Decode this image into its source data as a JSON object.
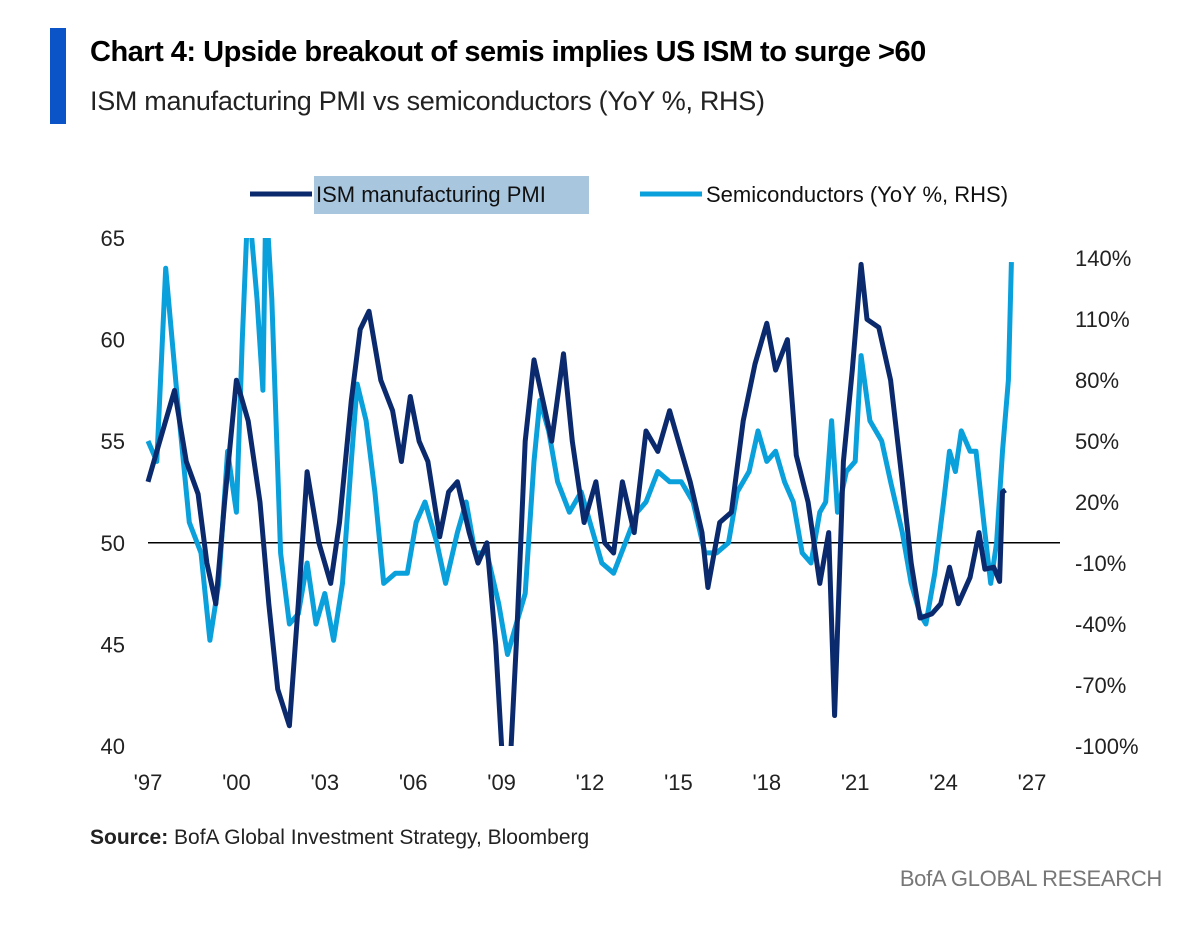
{
  "header": {
    "title": "Chart 4: Upside breakout of semis implies US ISM to surge >60",
    "subtitle": "ISM manufacturing PMI vs semiconductors (YoY %, RHS)"
  },
  "footer": {
    "source_label": "Source:",
    "source_text": "BofA Global Investment Strategy, Bloomberg",
    "brand": "BofA GLOBAL RESEARCH"
  },
  "chart_data": {
    "type": "line",
    "title": "Chart 4: Upside breakout of semis implies US ISM to surge >60",
    "subtitle": "ISM manufacturing PMI vs semiconductors (YoY %, RHS)",
    "legend_placement": "top-center",
    "grid": false,
    "reference_line": {
      "axis": "left",
      "value": 50
    },
    "x_axis": {
      "range": [
        1997,
        2027
      ],
      "ticks": [
        1997,
        2000,
        2003,
        2006,
        2009,
        2012,
        2015,
        2018,
        2021,
        2024,
        2027
      ],
      "tick_labels": [
        "'97",
        "'00",
        "'03",
        "'06",
        "'09",
        "'12",
        "'15",
        "'18",
        "'21",
        "'24",
        "'27"
      ]
    },
    "y_left": {
      "range": [
        40,
        65
      ],
      "ticks": [
        40,
        45,
        50,
        55,
        60,
        65
      ],
      "tick_labels": [
        "40",
        "45",
        "50",
        "55",
        "60",
        "65"
      ]
    },
    "y_right": {
      "range": [
        -100,
        140
      ],
      "ticks": [
        -100,
        -70,
        -40,
        -10,
        20,
        50,
        80,
        110,
        140
      ],
      "tick_labels": [
        "-100%",
        "-70%",
        "-40%",
        "-10%",
        "20%",
        "50%",
        "80%",
        "110%",
        "140%"
      ]
    },
    "series": [
      {
        "name": "ISM manufacturing PMI",
        "axis": "left",
        "color": "#0b2a6e",
        "highlighted": true,
        "points": [
          [
            1997.0,
            53
          ],
          [
            1997.5,
            55.5
          ],
          [
            1997.9,
            57.5
          ],
          [
            1998.3,
            54
          ],
          [
            1998.7,
            52.4
          ],
          [
            1999.0,
            49
          ],
          [
            1999.3,
            47
          ],
          [
            1999.6,
            52
          ],
          [
            2000.0,
            58
          ],
          [
            2000.4,
            56
          ],
          [
            2000.8,
            52
          ],
          [
            2001.1,
            47
          ],
          [
            2001.4,
            42.8
          ],
          [
            2001.8,
            41
          ],
          [
            2002.1,
            47
          ],
          [
            2002.4,
            53.5
          ],
          [
            2002.8,
            50
          ],
          [
            2003.2,
            48
          ],
          [
            2003.5,
            51
          ],
          [
            2003.9,
            57
          ],
          [
            2004.2,
            60.5
          ],
          [
            2004.5,
            61.4
          ],
          [
            2004.9,
            58
          ],
          [
            2005.3,
            56.5
          ],
          [
            2005.6,
            54
          ],
          [
            2005.9,
            57.2
          ],
          [
            2006.2,
            55
          ],
          [
            2006.5,
            54
          ],
          [
            2006.9,
            50.3
          ],
          [
            2007.2,
            52.5
          ],
          [
            2007.5,
            53
          ],
          [
            2007.9,
            50.5
          ],
          [
            2008.2,
            49
          ],
          [
            2008.5,
            50
          ],
          [
            2008.8,
            45
          ],
          [
            2009.0,
            40
          ],
          [
            2009.2,
            36.5
          ],
          [
            2009.5,
            45
          ],
          [
            2009.8,
            55
          ],
          [
            2010.1,
            59
          ],
          [
            2010.4,
            57
          ],
          [
            2010.7,
            55
          ],
          [
            2011.1,
            59.3
          ],
          [
            2011.4,
            55
          ],
          [
            2011.8,
            51
          ],
          [
            2012.2,
            53
          ],
          [
            2012.5,
            50
          ],
          [
            2012.8,
            49.5
          ],
          [
            2013.1,
            53
          ],
          [
            2013.5,
            50.5
          ],
          [
            2013.9,
            55.5
          ],
          [
            2014.3,
            54.5
          ],
          [
            2014.7,
            56.5
          ],
          [
            2015.0,
            55
          ],
          [
            2015.4,
            53
          ],
          [
            2015.8,
            50.5
          ],
          [
            2016.0,
            47.8
          ],
          [
            2016.4,
            51
          ],
          [
            2016.8,
            51.5
          ],
          [
            2017.2,
            56
          ],
          [
            2017.6,
            58.8
          ],
          [
            2018.0,
            60.8
          ],
          [
            2018.3,
            58.5
          ],
          [
            2018.7,
            60
          ],
          [
            2019.0,
            54.3
          ],
          [
            2019.4,
            52
          ],
          [
            2019.8,
            48
          ],
          [
            2020.1,
            50.5
          ],
          [
            2020.3,
            41.5
          ],
          [
            2020.6,
            54
          ],
          [
            2020.9,
            58.5
          ],
          [
            2021.2,
            63.7
          ],
          [
            2021.4,
            61
          ],
          [
            2021.8,
            60.6
          ],
          [
            2022.2,
            58
          ],
          [
            2022.6,
            53
          ],
          [
            2022.9,
            49
          ],
          [
            2023.2,
            46.3
          ],
          [
            2023.6,
            46.5
          ],
          [
            2023.9,
            47
          ],
          [
            2024.2,
            48.8
          ],
          [
            2024.5,
            47
          ],
          [
            2024.9,
            48.3
          ],
          [
            2025.2,
            50.5
          ],
          [
            2025.4,
            48.7
          ],
          [
            2025.7,
            48.8
          ],
          [
            2025.9,
            48.1
          ],
          [
            2026.0,
            52.5
          ],
          [
            2026.1,
            52.6
          ]
        ]
      },
      {
        "name": "Semiconductors (YoY %, RHS)",
        "axis": "right",
        "color": "#0aa0dc",
        "points": [
          [
            1997.0,
            50
          ],
          [
            1997.3,
            40
          ],
          [
            1997.6,
            135
          ],
          [
            1998.0,
            70
          ],
          [
            1998.4,
            10
          ],
          [
            1998.8,
            -5
          ],
          [
            1999.1,
            -48
          ],
          [
            1999.4,
            -20
          ],
          [
            1999.7,
            45
          ],
          [
            2000.0,
            15
          ],
          [
            2000.2,
            100
          ],
          [
            2000.4,
            170
          ],
          [
            2000.7,
            120
          ],
          [
            2000.9,
            75
          ],
          [
            2001.0,
            170
          ],
          [
            2001.2,
            120
          ],
          [
            2001.5,
            -5
          ],
          [
            2001.8,
            -40
          ],
          [
            2002.1,
            -35
          ],
          [
            2002.4,
            -10
          ],
          [
            2002.7,
            -40
          ],
          [
            2003.0,
            -25
          ],
          [
            2003.3,
            -48
          ],
          [
            2003.6,
            -20
          ],
          [
            2003.9,
            40
          ],
          [
            2004.1,
            78
          ],
          [
            2004.4,
            60
          ],
          [
            2004.7,
            25
          ],
          [
            2005.0,
            -20
          ],
          [
            2005.4,
            -15
          ],
          [
            2005.8,
            -15
          ],
          [
            2006.1,
            10
          ],
          [
            2006.4,
            20
          ],
          [
            2006.8,
            0
          ],
          [
            2007.1,
            -20
          ],
          [
            2007.5,
            5
          ],
          [
            2007.8,
            20
          ],
          [
            2008.1,
            -5
          ],
          [
            2008.5,
            -5
          ],
          [
            2008.9,
            -30
          ],
          [
            2009.2,
            -55
          ],
          [
            2009.5,
            -40
          ],
          [
            2009.8,
            -25
          ],
          [
            2010.1,
            40
          ],
          [
            2010.3,
            70
          ],
          [
            2010.6,
            55
          ],
          [
            2010.9,
            30
          ],
          [
            2011.3,
            15
          ],
          [
            2011.7,
            25
          ],
          [
            2012.0,
            10
          ],
          [
            2012.4,
            -10
          ],
          [
            2012.8,
            -15
          ],
          [
            2013.2,
            0
          ],
          [
            2013.6,
            15
          ],
          [
            2013.9,
            20
          ],
          [
            2014.3,
            35
          ],
          [
            2014.7,
            30
          ],
          [
            2015.1,
            30
          ],
          [
            2015.5,
            20
          ],
          [
            2015.9,
            -5
          ],
          [
            2016.3,
            -5
          ],
          [
            2016.7,
            0
          ],
          [
            2017.0,
            25
          ],
          [
            2017.4,
            35
          ],
          [
            2017.7,
            55
          ],
          [
            2018.0,
            40
          ],
          [
            2018.3,
            45
          ],
          [
            2018.6,
            30
          ],
          [
            2018.9,
            20
          ],
          [
            2019.2,
            -5
          ],
          [
            2019.5,
            -10
          ],
          [
            2019.8,
            15
          ],
          [
            2020.0,
            20
          ],
          [
            2020.2,
            60
          ],
          [
            2020.4,
            15
          ],
          [
            2020.7,
            35
          ],
          [
            2021.0,
            40
          ],
          [
            2021.2,
            92
          ],
          [
            2021.5,
            60
          ],
          [
            2021.9,
            50
          ],
          [
            2022.2,
            30
          ],
          [
            2022.6,
            5
          ],
          [
            2022.9,
            -20
          ],
          [
            2023.2,
            -35
          ],
          [
            2023.4,
            -40
          ],
          [
            2023.7,
            -15
          ],
          [
            2024.0,
            20
          ],
          [
            2024.2,
            45
          ],
          [
            2024.4,
            35
          ],
          [
            2024.6,
            55
          ],
          [
            2024.9,
            45
          ],
          [
            2025.1,
            45
          ],
          [
            2025.4,
            5
          ],
          [
            2025.6,
            -20
          ],
          [
            2025.8,
            0
          ],
          [
            2026.0,
            45
          ],
          [
            2026.2,
            80
          ],
          [
            2026.3,
            138
          ]
        ]
      }
    ]
  }
}
